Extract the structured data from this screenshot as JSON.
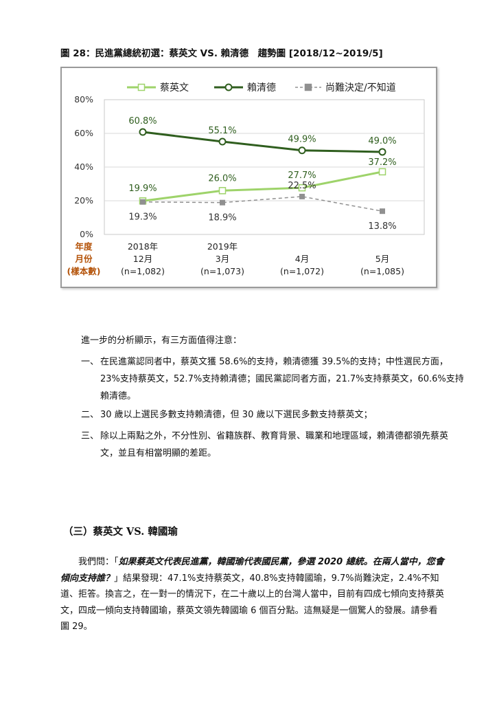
{
  "figure": {
    "title": "圖 28：民進黨總統初選：蔡英文 VS. 賴清德　趨勢圖 [2018/12~2019/5]"
  },
  "chart_data": {
    "type": "line",
    "x_labels": [
      [
        "2018年",
        "12月",
        "(n=1,082)"
      ],
      [
        "2019年",
        "3月",
        "(n=1,073)"
      ],
      [
        "",
        "4月",
        "(n=1,072)"
      ],
      [
        "",
        "5月",
        "(n=1,085)"
      ]
    ],
    "row_labels": [
      "年度",
      "月份",
      "(樣本數)"
    ],
    "y_ticks": [
      "0%",
      "20%",
      "40%",
      "60%",
      "80%"
    ],
    "ylim": [
      0,
      80
    ],
    "series": [
      {
        "name": "蔡英文",
        "values": [
          19.9,
          26.0,
          27.7,
          37.2
        ],
        "labels": [
          "19.9%",
          "26.0%",
          "27.7%",
          "37.2%"
        ],
        "color": "#9ed36a",
        "marker": "square",
        "style": "solid"
      },
      {
        "name": "賴清德",
        "values": [
          60.8,
          55.1,
          49.9,
          49.0
        ],
        "labels": [
          "60.8%",
          "55.1%",
          "49.9%",
          "49.0%"
        ],
        "color": "#2f5e1e",
        "marker": "circle",
        "style": "solid"
      },
      {
        "name": "尚難決定/不知道",
        "values": [
          19.3,
          18.9,
          22.5,
          13.8
        ],
        "labels": [
          "19.3%",
          "18.9%",
          "22.5%",
          "13.8%"
        ],
        "color": "#909090",
        "marker": "square",
        "style": "dashed"
      }
    ],
    "grid": true,
    "legend": "top"
  },
  "intro": "進一步的分析顯示，有三方面值得注意：",
  "items": [
    {
      "num": "一、",
      "text": "在民進黨認同者中，蔡英文獲 58.6%的支持，賴清德獲 39.5%的支持；中性選民方面，23%支持蔡英文，52.7%支持賴清德；國民黨認同者方面，21.7%支持蔡英文，60.6%支持賴清德。"
    },
    {
      "num": "二、",
      "text": "30 歲以上選民多數支持賴清德，但 30 歲以下選民多數支持蔡英文；"
    },
    {
      "num": "三、",
      "text": "除以上兩點之外，不分性別、省籍族群、教育背景、職業和地理區域，賴清德都領先蔡英文，並且有相當明顯的差距。"
    }
  ],
  "section": {
    "heading": "（三）蔡英文 VS. 韓國瑜"
  },
  "paragraph": {
    "lead": "我們問：「",
    "question": "如果蔡英文代表民進黨，韓國瑜代表國民黨，參選 2020 總統。在兩人當中，您會傾向支持誰？",
    "rest": "」結果發現：47.1%支持蔡英文，40.8%支持韓國瑜，9.7%尚難決定，2.4%不知道、拒答。換言之，在一對一的情況下，在二十歲以上的台灣人當中，目前有四成七傾向支持蔡英文，四成一傾向支持韓國瑜，蔡英文領先韓國瑜 6 個百分點。這無疑是一個驚人的發展。請參看圖 29。"
  }
}
